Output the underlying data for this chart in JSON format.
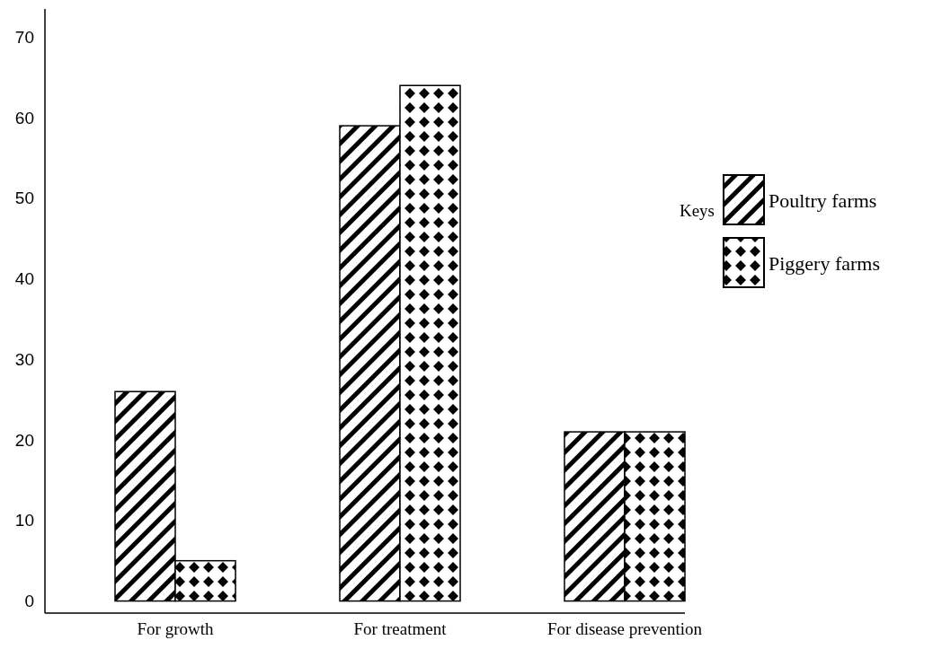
{
  "chart_data": {
    "type": "bar",
    "categories": [
      "For growth",
      "For treatment",
      "For disease prevention"
    ],
    "series": [
      {
        "name": "Poultry farms",
        "color": "#000000",
        "values": [
          26,
          59,
          21
        ]
      },
      {
        "name": "Piggery farms",
        "color": "#000000",
        "values": [
          5,
          64,
          21
        ]
      }
    ],
    "legend_title": "Keys",
    "legend": "right",
    "ylim": [
      -1.5,
      73.5
    ],
    "yticks": [
      0,
      10,
      20,
      30,
      40,
      50,
      60,
      70
    ],
    "grid": false
  }
}
